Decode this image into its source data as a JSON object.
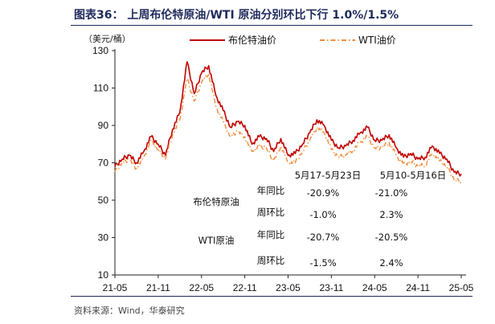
{
  "title": "图表36：  上周布伦特原油/WTI 原油分别环比下行 1.0%/1.5%",
  "unit_label": "（美元/桶）",
  "source": "资料来源：Wind，华泰研究",
  "colors": {
    "brent": "#c00000",
    "wti": "#f08c3c",
    "title": "#1f2a5c"
  },
  "chart_data": {
    "type": "line",
    "title": "上周布伦特原油/WTI 原油分别环比下行 1.0%/1.5%",
    "ylabel": "（美元/桶）",
    "ylim": [
      10,
      130
    ],
    "yticks": [
      10,
      30,
      50,
      70,
      90,
      110,
      130
    ],
    "xticks": [
      "21-05",
      "21-11",
      "22-05",
      "22-11",
      "23-05",
      "23-11",
      "24-05",
      "24-11",
      "25-05"
    ],
    "legend_position": "top",
    "grid": false,
    "series": [
      {
        "name": "布伦特油价",
        "x": [
          "21-05",
          "21-06",
          "21-07",
          "21-08",
          "21-09",
          "21-10",
          "21-11",
          "21-12",
          "22-01",
          "22-02",
          "22-03",
          "22-04",
          "22-05",
          "22-06",
          "22-07",
          "22-08",
          "22-09",
          "22-10",
          "22-11",
          "22-12",
          "23-01",
          "23-02",
          "23-03",
          "23-04",
          "23-05",
          "23-06",
          "23-07",
          "23-08",
          "23-09",
          "23-10",
          "23-11",
          "23-12",
          "24-01",
          "24-02",
          "24-03",
          "24-04",
          "24-05",
          "24-06",
          "24-07",
          "24-08",
          "24-09",
          "24-10",
          "24-11",
          "24-12",
          "25-01",
          "25-02",
          "25-03",
          "25-04",
          "25-05"
        ],
        "values": [
          68,
          72,
          74,
          70,
          76,
          84,
          80,
          74,
          88,
          97,
          124,
          107,
          118,
          122,
          106,
          98,
          89,
          92,
          90,
          80,
          84,
          83,
          76,
          83,
          74,
          75,
          80,
          86,
          93,
          90,
          82,
          78,
          79,
          82,
          86,
          89,
          82,
          82,
          85,
          78,
          73,
          75,
          72,
          73,
          79,
          75,
          72,
          65,
          64
        ]
      },
      {
        "name": "WTI油价",
        "x": [
          "21-05",
          "21-06",
          "21-07",
          "21-08",
          "21-09",
          "21-10",
          "21-11",
          "21-12",
          "22-01",
          "22-02",
          "22-03",
          "22-04",
          "22-05",
          "22-06",
          "22-07",
          "22-08",
          "22-09",
          "22-10",
          "22-11",
          "22-12",
          "23-01",
          "23-02",
          "23-03",
          "23-04",
          "23-05",
          "23-06",
          "23-07",
          "23-08",
          "23-09",
          "23-10",
          "23-11",
          "23-12",
          "24-01",
          "24-02",
          "24-03",
          "24-04",
          "24-05",
          "24-06",
          "24-07",
          "24-08",
          "24-09",
          "24-10",
          "24-11",
          "24-12",
          "25-01",
          "25-02",
          "25-03",
          "25-04",
          "25-05"
        ],
        "values": [
          65,
          70,
          72,
          67,
          73,
          82,
          77,
          72,
          85,
          93,
          115,
          103,
          113,
          118,
          100,
          92,
          84,
          87,
          84,
          76,
          79,
          78,
          71,
          79,
          70,
          70,
          76,
          82,
          89,
          86,
          77,
          73,
          74,
          77,
          81,
          84,
          78,
          78,
          81,
          74,
          69,
          71,
          68,
          69,
          75,
          71,
          68,
          61,
          60
        ]
      }
    ],
    "annotations": {
      "col_headers": [
        "5月17-5月23日",
        "5月10-5月16日"
      ],
      "rows": [
        {
          "product": "布伦特原油",
          "metric": "年同比",
          "v1": "-20.9%",
          "v2": "-21.0%"
        },
        {
          "product": "",
          "metric": "周环比",
          "v1": "-1.0%",
          "v2": "2.3%"
        },
        {
          "product": "WTI原油",
          "metric": "年同比",
          "v1": "-20.7%",
          "v2": "-20.5%"
        },
        {
          "product": "",
          "metric": "周环比",
          "v1": "-1.5%",
          "v2": "2.4%"
        }
      ]
    }
  }
}
